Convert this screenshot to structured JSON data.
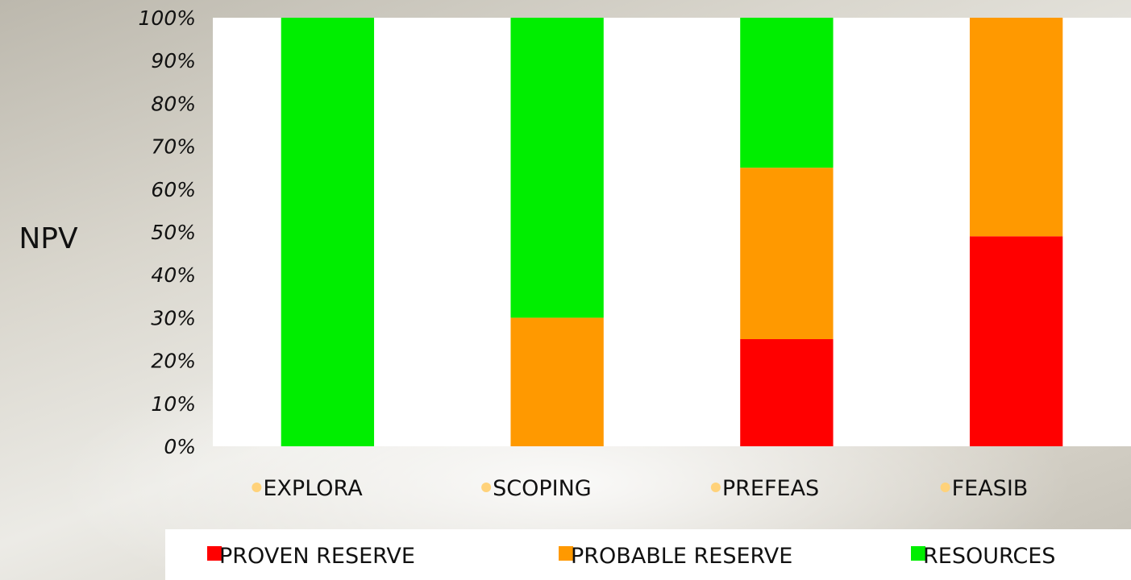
{
  "chart_data": {
    "type": "bar",
    "stacked": true,
    "percent_stacked": true,
    "title": "",
    "xlabel": "",
    "ylabel": "NPV",
    "ylim": [
      0,
      100
    ],
    "yticks": [
      "0%",
      "10%",
      "20%",
      "30%",
      "40%",
      "50%",
      "60%",
      "70%",
      "80%",
      "90%",
      "100%"
    ],
    "categories": [
      "EXPLORA",
      "SCOPING",
      "PREFEAS",
      "FEASIB"
    ],
    "series": [
      {
        "name": "PROVEN RESERVE",
        "color": "#ff0000",
        "values": [
          0,
          0,
          25,
          49
        ]
      },
      {
        "name": "PROBABLE RESERVE",
        "color": "#ff9900",
        "values": [
          0,
          30,
          40,
          51
        ]
      },
      {
        "name": "RESOURCES",
        "color": "#00ee00",
        "values": [
          100,
          70,
          35,
          0
        ]
      }
    ],
    "grid": false,
    "legend_position": "bottom",
    "category_bullet_color": "#ffd27a"
  }
}
